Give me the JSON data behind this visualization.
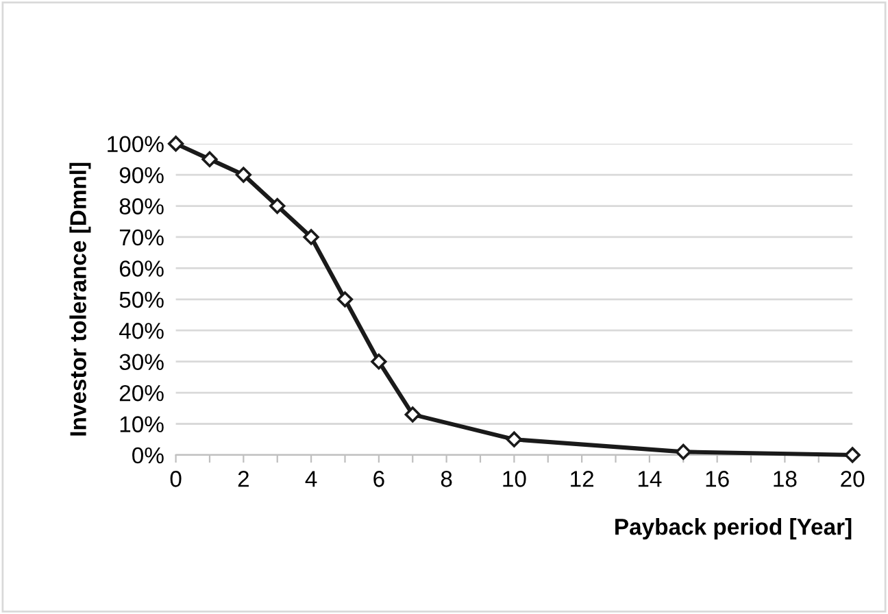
{
  "chart_data": {
    "type": "line",
    "xlabel": "Payback period [Year]",
    "ylabel": "Investor tolerance [Dmnl]",
    "x": [
      0,
      1,
      2,
      3,
      4,
      5,
      6,
      7,
      10,
      15,
      20
    ],
    "series": [
      {
        "color": "#1a1a1a",
        "values": [
          100,
          95,
          90,
          80,
          70,
          50,
          30,
          13,
          5,
          1,
          0
        ]
      }
    ],
    "xlim": [
      0,
      20
    ],
    "xticks": [
      0,
      {
        "value": 1,
        "label": null
      },
      2,
      {
        "value": 3,
        "label": null
      },
      4,
      {
        "value": 5,
        "label": null
      },
      6,
      {
        "value": 7,
        "label": null
      },
      8,
      {
        "value": 9,
        "label": null
      },
      10,
      {
        "value": 11,
        "label": null
      },
      12,
      {
        "value": 13,
        "label": null
      },
      14,
      {
        "value": 15,
        "label": null
      },
      16,
      {
        "value": 17,
        "label": null
      },
      18,
      {
        "value": 19,
        "label": null
      },
      20
    ],
    "ylim": [
      0,
      100
    ],
    "yticks": [
      {
        "value": 0,
        "label": "0%"
      },
      {
        "value": 10,
        "label": "10%"
      },
      {
        "value": 20,
        "label": "20%"
      },
      {
        "value": 30,
        "label": "30%"
      },
      {
        "value": 40,
        "label": "40%"
      },
      {
        "value": 50,
        "label": "50%"
      },
      {
        "value": 60,
        "label": "60%"
      },
      {
        "value": 70,
        "label": "70%"
      },
      {
        "value": 80,
        "label": "80%"
      },
      {
        "value": 90,
        "label": "90%"
      },
      {
        "value": 100,
        "label": "100%"
      }
    ],
    "grid": "y",
    "marker": "diamond",
    "line_style": "solid"
  }
}
